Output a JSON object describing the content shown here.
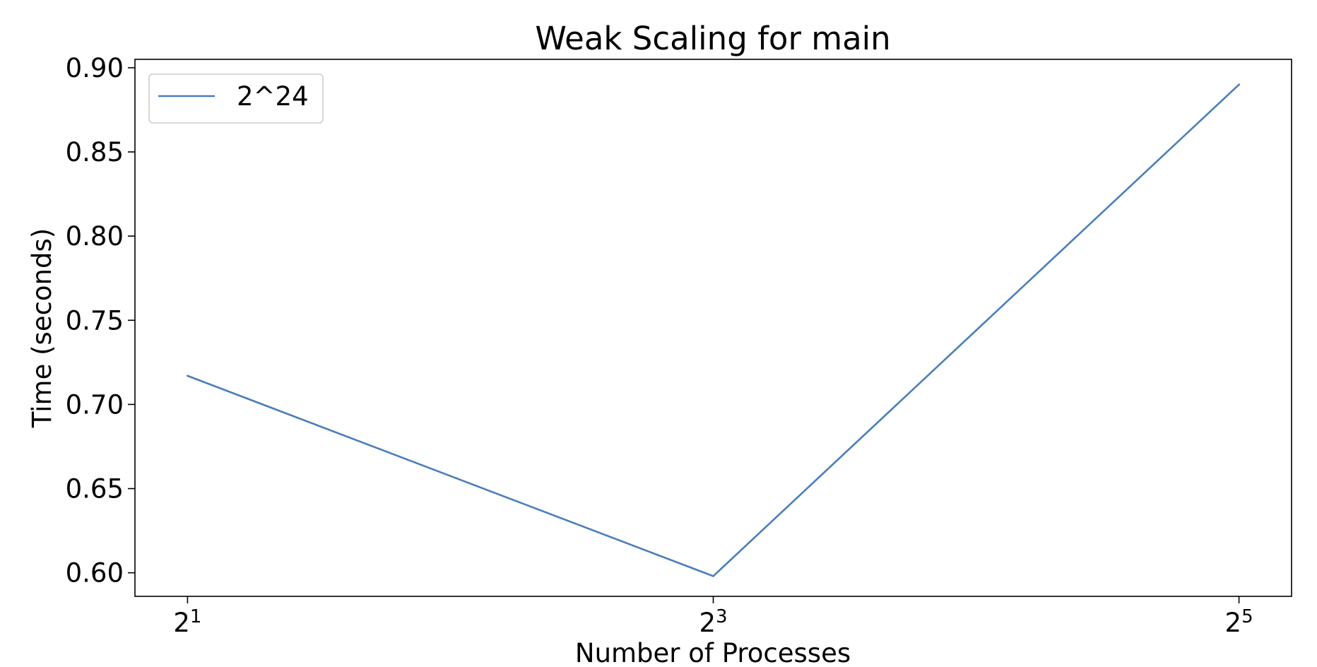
{
  "chart_data": {
    "type": "line",
    "title": "Weak Scaling for main",
    "xlabel": "Number of Processes",
    "ylabel": "Time (seconds)",
    "x_scale": "log2",
    "x": [
      2,
      8,
      32
    ],
    "x_tick_labels": [
      {
        "base": "2",
        "exp": "1"
      },
      {
        "base": "2",
        "exp": "3"
      },
      {
        "base": "2",
        "exp": "5"
      }
    ],
    "y_ticks": [
      "0.60",
      "0.65",
      "0.70",
      "0.75",
      "0.80",
      "0.85",
      "0.90"
    ],
    "ylim": [
      0.586,
      0.905
    ],
    "grid": false,
    "legend_position": "top-left",
    "series": [
      {
        "name": "2^24",
        "color": "#4a7ebb",
        "values": [
          0.717,
          0.598,
          0.89
        ]
      }
    ]
  }
}
